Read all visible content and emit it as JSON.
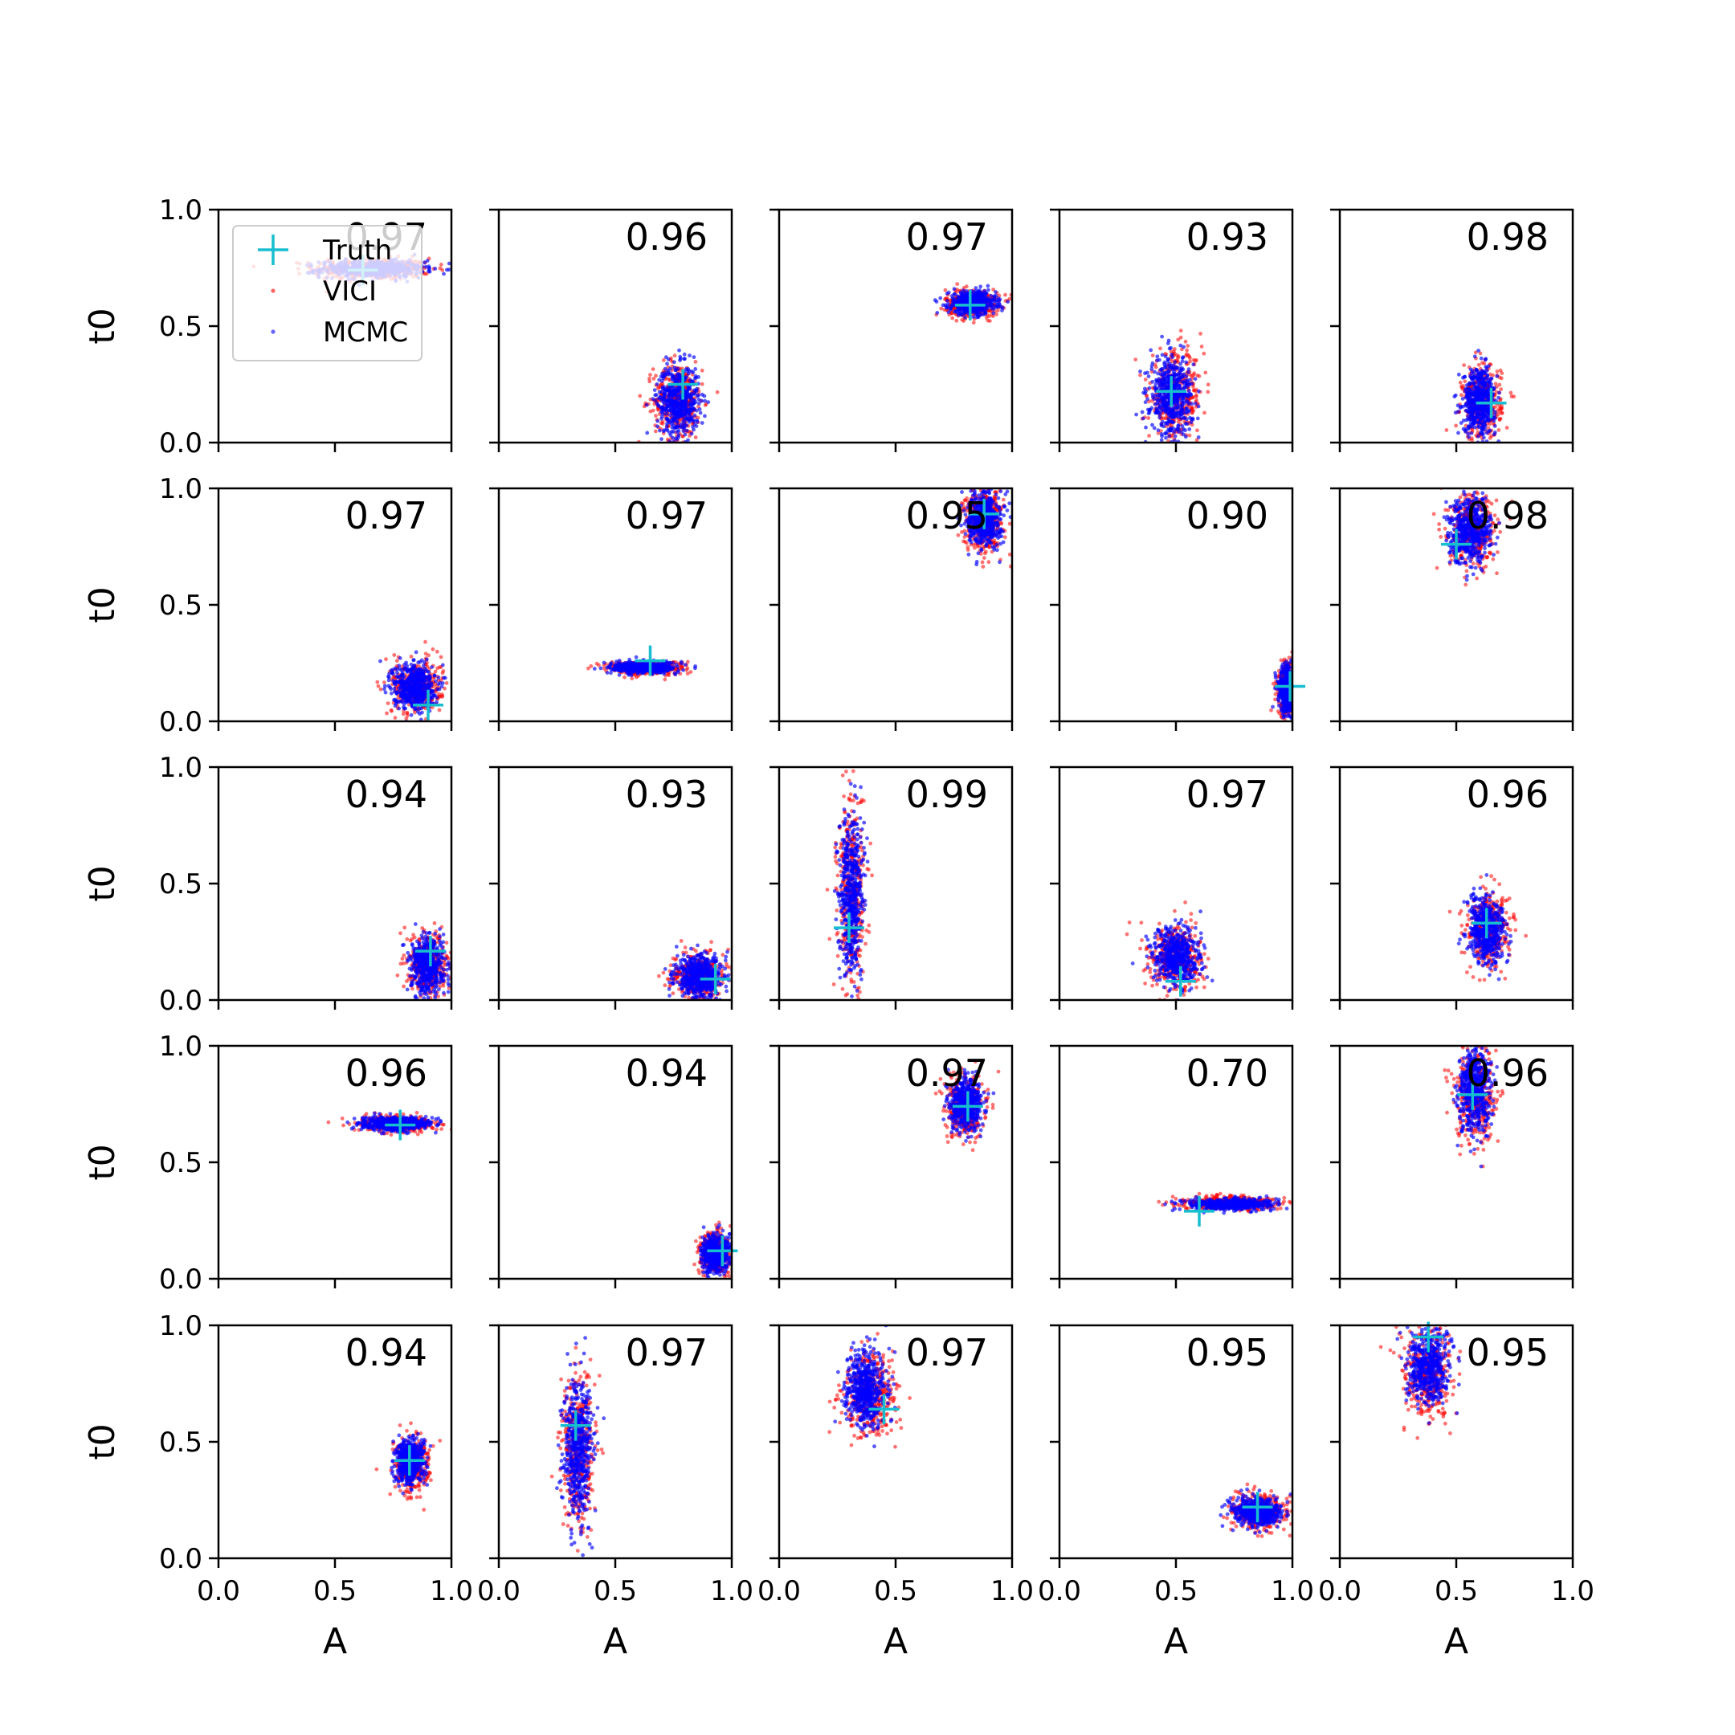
{
  "chart_data": {
    "type": "scatter",
    "grid": false,
    "xlabel": "A",
    "ylabel": "t0",
    "xlim": [
      0.0,
      1.0
    ],
    "ylim": [
      0.0,
      1.0
    ],
    "xticks": [
      "0.0",
      "0.5",
      "1.0"
    ],
    "yticks": [
      "0.0",
      "0.5",
      "1.0"
    ],
    "legend": {
      "placement": "upper-left of first panel",
      "entries": [
        {
          "name": "Truth",
          "marker": "plus",
          "color": "#17BECF"
        },
        {
          "name": "VICI",
          "marker": "dot",
          "color": "#FF0000"
        },
        {
          "name": "MCMC",
          "marker": "dot",
          "color": "#0000FF"
        }
      ]
    },
    "series_colors": {
      "truth": "#17BECF",
      "vici": "#FF0000",
      "mcmc": "#0000FF"
    },
    "panels": [
      {
        "overlap": "0.97",
        "truth": [
          0.62,
          0.74
        ],
        "mcmc": {
          "cx": 0.66,
          "cy": 0.745,
          "sx": 0.11,
          "sy": 0.018
        },
        "vici": {
          "cx": 0.66,
          "cy": 0.745,
          "sx": 0.12,
          "sy": 0.022
        }
      },
      {
        "overlap": "0.96",
        "truth": [
          0.79,
          0.25
        ],
        "mcmc": {
          "cx": 0.77,
          "cy": 0.18,
          "sx": 0.045,
          "sy": 0.075
        },
        "vici": {
          "cx": 0.77,
          "cy": 0.18,
          "sx": 0.05,
          "sy": 0.08
        }
      },
      {
        "overlap": "0.97",
        "truth": [
          0.82,
          0.59
        ],
        "mcmc": {
          "cx": 0.83,
          "cy": 0.6,
          "sx": 0.05,
          "sy": 0.025
        },
        "vici": {
          "cx": 0.83,
          "cy": 0.6,
          "sx": 0.055,
          "sy": 0.028
        }
      },
      {
        "overlap": "0.93",
        "truth": [
          0.48,
          0.22
        ],
        "mcmc": {
          "cx": 0.48,
          "cy": 0.2,
          "sx": 0.045,
          "sy": 0.085
        },
        "vici": {
          "cx": 0.5,
          "cy": 0.2,
          "sx": 0.055,
          "sy": 0.09
        }
      },
      {
        "overlap": "0.98",
        "truth": [
          0.65,
          0.17
        ],
        "mcmc": {
          "cx": 0.6,
          "cy": 0.18,
          "sx": 0.035,
          "sy": 0.07
        },
        "vici": {
          "cx": 0.61,
          "cy": 0.17,
          "sx": 0.04,
          "sy": 0.075
        }
      },
      {
        "overlap": "0.97",
        "truth": [
          0.9,
          0.07
        ],
        "mcmc": {
          "cx": 0.84,
          "cy": 0.15,
          "sx": 0.045,
          "sy": 0.05
        },
        "vici": {
          "cx": 0.85,
          "cy": 0.15,
          "sx": 0.05,
          "sy": 0.055
        }
      },
      {
        "overlap": "0.97",
        "truth": [
          0.65,
          0.26
        ],
        "mcmc": {
          "cx": 0.62,
          "cy": 0.23,
          "sx": 0.07,
          "sy": 0.012
        },
        "vici": {
          "cx": 0.63,
          "cy": 0.23,
          "sx": 0.08,
          "sy": 0.014
        }
      },
      {
        "overlap": "0.95",
        "truth": [
          0.88,
          0.89
        ],
        "mcmc": {
          "cx": 0.88,
          "cy": 0.87,
          "sx": 0.035,
          "sy": 0.06
        },
        "vici": {
          "cx": 0.88,
          "cy": 0.86,
          "sx": 0.04,
          "sy": 0.065
        }
      },
      {
        "overlap": "0.90",
        "truth": [
          0.99,
          0.15
        ],
        "mcmc": {
          "cx": 0.98,
          "cy": 0.14,
          "sx": 0.02,
          "sy": 0.05
        },
        "vici": {
          "cx": 0.98,
          "cy": 0.14,
          "sx": 0.022,
          "sy": 0.055
        }
      },
      {
        "overlap": "0.98",
        "truth": [
          0.5,
          0.76
        ],
        "mcmc": {
          "cx": 0.56,
          "cy": 0.82,
          "sx": 0.045,
          "sy": 0.07
        },
        "vici": {
          "cx": 0.57,
          "cy": 0.81,
          "sx": 0.05,
          "sy": 0.075
        }
      },
      {
        "overlap": "0.94",
        "truth": [
          0.91,
          0.21
        ],
        "mcmc": {
          "cx": 0.9,
          "cy": 0.15,
          "sx": 0.035,
          "sy": 0.06
        },
        "vici": {
          "cx": 0.9,
          "cy": 0.15,
          "sx": 0.04,
          "sy": 0.065
        }
      },
      {
        "overlap": "0.93",
        "truth": [
          0.93,
          0.09
        ],
        "mcmc": {
          "cx": 0.86,
          "cy": 0.1,
          "sx": 0.05,
          "sy": 0.045
        },
        "vici": {
          "cx": 0.86,
          "cy": 0.1,
          "sx": 0.055,
          "sy": 0.05
        }
      },
      {
        "overlap": "0.99",
        "truth": [
          0.3,
          0.31
        ],
        "mcmc": {
          "cx": 0.31,
          "cy": 0.46,
          "sx": 0.025,
          "sy": 0.17
        },
        "vici": {
          "cx": 0.31,
          "cy": 0.46,
          "sx": 0.028,
          "sy": 0.18
        }
      },
      {
        "overlap": "0.97",
        "truth": [
          0.52,
          0.08
        ],
        "mcmc": {
          "cx": 0.5,
          "cy": 0.18,
          "sx": 0.05,
          "sy": 0.065
        },
        "vici": {
          "cx": 0.5,
          "cy": 0.18,
          "sx": 0.055,
          "sy": 0.07
        }
      },
      {
        "overlap": "0.96",
        "truth": [
          0.63,
          0.33
        ],
        "mcmc": {
          "cx": 0.63,
          "cy": 0.3,
          "sx": 0.04,
          "sy": 0.07
        },
        "vici": {
          "cx": 0.64,
          "cy": 0.3,
          "sx": 0.045,
          "sy": 0.075
        }
      },
      {
        "overlap": "0.96",
        "truth": [
          0.78,
          0.66
        ],
        "mcmc": {
          "cx": 0.76,
          "cy": 0.665,
          "sx": 0.07,
          "sy": 0.014
        },
        "vici": {
          "cx": 0.77,
          "cy": 0.665,
          "sx": 0.08,
          "sy": 0.016
        }
      },
      {
        "overlap": "0.94",
        "truth": [
          0.96,
          0.12
        ],
        "mcmc": {
          "cx": 0.93,
          "cy": 0.11,
          "sx": 0.03,
          "sy": 0.04
        },
        "vici": {
          "cx": 0.93,
          "cy": 0.11,
          "sx": 0.032,
          "sy": 0.045
        }
      },
      {
        "overlap": "0.97",
        "truth": [
          0.81,
          0.74
        ],
        "mcmc": {
          "cx": 0.8,
          "cy": 0.75,
          "sx": 0.035,
          "sy": 0.055
        },
        "vici": {
          "cx": 0.8,
          "cy": 0.74,
          "sx": 0.04,
          "sy": 0.06
        }
      },
      {
        "overlap": "0.70",
        "truth": [
          0.6,
          0.29
        ],
        "mcmc": {
          "cx": 0.73,
          "cy": 0.32,
          "sx": 0.09,
          "sy": 0.012
        },
        "vici": {
          "cx": 0.72,
          "cy": 0.325,
          "sx": 0.1,
          "sy": 0.015
        }
      },
      {
        "overlap": "0.96",
        "truth": [
          0.57,
          0.79
        ],
        "mcmc": {
          "cx": 0.58,
          "cy": 0.8,
          "sx": 0.035,
          "sy": 0.09
        },
        "vici": {
          "cx": 0.58,
          "cy": 0.78,
          "sx": 0.04,
          "sy": 0.1
        }
      },
      {
        "overlap": "0.94",
        "truth": [
          0.82,
          0.42
        ],
        "mcmc": {
          "cx": 0.82,
          "cy": 0.41,
          "sx": 0.03,
          "sy": 0.05
        },
        "vici": {
          "cx": 0.83,
          "cy": 0.4,
          "sx": 0.035,
          "sy": 0.055
        }
      },
      {
        "overlap": "0.97",
        "truth": [
          0.33,
          0.57
        ],
        "mcmc": {
          "cx": 0.34,
          "cy": 0.47,
          "sx": 0.03,
          "sy": 0.15
        },
        "vici": {
          "cx": 0.34,
          "cy": 0.47,
          "sx": 0.033,
          "sy": 0.16
        }
      },
      {
        "overlap": "0.97",
        "truth": [
          0.45,
          0.64
        ],
        "mcmc": {
          "cx": 0.37,
          "cy": 0.73,
          "sx": 0.045,
          "sy": 0.08
        },
        "vici": {
          "cx": 0.39,
          "cy": 0.7,
          "sx": 0.055,
          "sy": 0.085
        }
      },
      {
        "overlap": "0.95",
        "truth": [
          0.85,
          0.22
        ],
        "mcmc": {
          "cx": 0.85,
          "cy": 0.2,
          "sx": 0.05,
          "sy": 0.03
        },
        "vici": {
          "cx": 0.86,
          "cy": 0.2,
          "sx": 0.055,
          "sy": 0.034
        }
      },
      {
        "overlap": "0.95",
        "truth": [
          0.38,
          0.95
        ],
        "mcmc": {
          "cx": 0.38,
          "cy": 0.82,
          "sx": 0.045,
          "sy": 0.08
        },
        "vici": {
          "cx": 0.38,
          "cy": 0.8,
          "sx": 0.05,
          "sy": 0.09
        }
      }
    ]
  }
}
